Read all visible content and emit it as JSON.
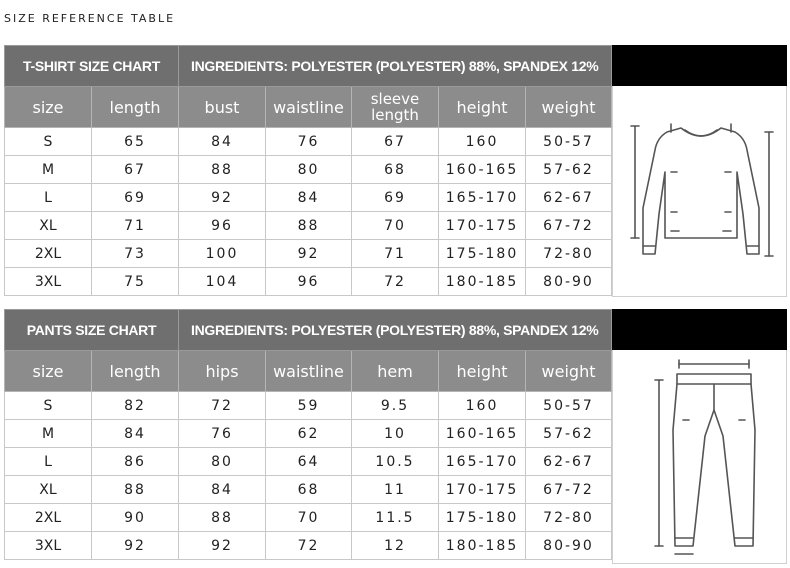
{
  "page_title": "SIZE REFERENCE TABLE",
  "tshirt": {
    "chart_title": "T-SHIRT SIZE CHART",
    "ingredients": "INGREDIENTS: POLYESTER (POLYESTER) 88%, SPANDEX 12%",
    "headers": [
      "size",
      "length",
      "bust",
      "waistline",
      "sleeve length",
      "height",
      "weight"
    ],
    "header_sleeve_line1": "sleeve",
    "header_sleeve_line2": "length",
    "rows": [
      [
        "S",
        "65",
        "84",
        "76",
        "67",
        "160",
        "50-57"
      ],
      [
        "M",
        "67",
        "88",
        "80",
        "68",
        "160-165",
        "57-62"
      ],
      [
        "L",
        "69",
        "92",
        "84",
        "69",
        "165-170",
        "62-67"
      ],
      [
        "XL",
        "71",
        "96",
        "88",
        "70",
        "170-175",
        "67-72"
      ],
      [
        "2XL",
        "73",
        "100",
        "92",
        "71",
        "175-180",
        "72-80"
      ],
      [
        "3XL",
        "75",
        "104",
        "96",
        "72",
        "180-185",
        "80-90"
      ]
    ]
  },
  "pants": {
    "chart_title": "PANTS SIZE CHART",
    "ingredients": "INGREDIENTS: POLYESTER (POLYESTER) 88%, SPANDEX 12%",
    "headers": [
      "size",
      "length",
      "hips",
      "waistline",
      "hem",
      "height",
      "weight"
    ],
    "rows": [
      [
        "S",
        "82",
        "72",
        "59",
        "9.5",
        "160",
        "50-57"
      ],
      [
        "M",
        "84",
        "76",
        "62",
        "10",
        "160-165",
        "57-62"
      ],
      [
        "L",
        "86",
        "80",
        "64",
        "10.5",
        "165-170",
        "62-67"
      ],
      [
        "XL",
        "88",
        "84",
        "68",
        "11",
        "170-175",
        "67-72"
      ],
      [
        "2XL",
        "90",
        "88",
        "70",
        "11.5",
        "175-180",
        "72-80"
      ],
      [
        "3XL",
        "92",
        "92",
        "72",
        "12",
        "180-185",
        "80-90"
      ]
    ]
  },
  "icons": {
    "tshirt": "long-sleeve-shirt-icon",
    "pants": "pants-icon"
  },
  "colors": {
    "title_bg": "#6f6f6f",
    "header_bg": "#8c8c8c",
    "bar": "#000000"
  }
}
